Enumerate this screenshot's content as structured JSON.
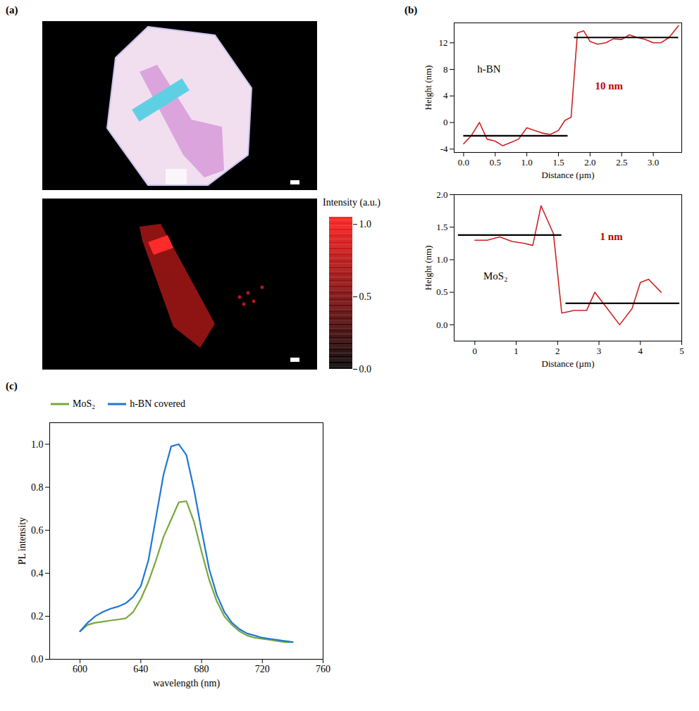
{
  "chart_data": [
    {
      "panel_label": "(a)",
      "type": "image",
      "colorbar_label": "Intensity (a.u.)",
      "colorbar_range": [
        0,
        1.05
      ],
      "colorbar_ticks": [
        {
          "value": 0,
          "label": "0.0"
        },
        {
          "value": 0.5,
          "label": "0.5"
        },
        {
          "value": 1,
          "label": "1.0"
        }
      ],
      "color": "#ff1a1a"
    },
    {
      "panel_label": "(b)",
      "type": "line",
      "x": [
        0,
        0.12,
        0.25,
        0.37,
        0.5,
        0.62,
        0.75,
        0.87,
        1.0,
        1.12,
        1.25,
        1.37,
        1.5,
        1.6,
        1.7,
        1.8,
        1.9,
        2.0,
        2.12,
        2.25,
        2.37,
        2.5,
        2.62,
        2.75,
        2.87,
        3.0,
        3.12,
        3.25,
        3.4
      ],
      "values": [
        -3.2,
        -2.0,
        0,
        -2.5,
        -2.8,
        -3.5,
        -3.0,
        -2.5,
        -0.8,
        -1.2,
        -1.6,
        -1.8,
        -1.2,
        0.3,
        0.8,
        13.5,
        13.8,
        12.2,
        11.8,
        12.0,
        12.6,
        12.5,
        13.2,
        12.8,
        12.5,
        12.0,
        12.0,
        12.8,
        14.6
      ],
      "color": "#cc2222",
      "xlabel": "Distance (µm)",
      "ylabel": "Height (nm)",
      "xlim": [
        -0.15,
        3.45
      ],
      "xticks": [
        {
          "value": 0,
          "label": "0.0"
        },
        {
          "value": 0.5,
          "label": "0.5"
        },
        {
          "value": 1,
          "label": "1.0"
        },
        {
          "value": 1.5,
          "label": "1.5"
        },
        {
          "value": 2,
          "label": "2.0"
        },
        {
          "value": 2.5,
          "label": "2.5"
        },
        {
          "value": 3,
          "label": "3.0"
        }
      ],
      "ylim": [
        -4.5,
        15
      ],
      "yticks": [
        -4,
        0,
        4,
        8,
        12
      ],
      "reference_lines": [
        {
          "y": -2,
          "x": [
            0,
            1.65
          ]
        },
        {
          "y": 12.8,
          "x": [
            1.75,
            3.4
          ]
        }
      ],
      "annotations": [
        {
          "text": "h-BN",
          "x": 0.4,
          "y": 8,
          "color": "#000000"
        },
        {
          "text": "10 nm",
          "x": 2.3,
          "y": 5.5,
          "color": "#c00000"
        }
      ]
    },
    {
      "type": "line",
      "x": [
        0,
        0.3,
        0.6,
        0.9,
        1.2,
        1.4,
        1.6,
        1.9,
        2.1,
        2.4,
        2.7,
        2.9,
        3.2,
        3.5,
        3.8,
        4.0,
        4.2,
        4.5
      ],
      "values": [
        1.3,
        1.3,
        1.35,
        1.28,
        1.25,
        1.22,
        1.83,
        1.4,
        0.18,
        0.22,
        0.22,
        0.5,
        0.25,
        0.0,
        0.25,
        0.65,
        0.7,
        0.5
      ],
      "color": "#cc2222",
      "xlabel": "Distance (µm)",
      "ylabel": "Height (nm)",
      "xlim": [
        -0.5,
        5
      ],
      "xticks": [
        0,
        1,
        2,
        3,
        4,
        5
      ],
      "ylim": [
        -0.25,
        2.0
      ],
      "yticks": [
        {
          "value": 0,
          "label": "0.0"
        },
        {
          "value": 0.5,
          "label": "0.5"
        },
        {
          "value": 1,
          "label": "1.0"
        },
        {
          "value": 1.5,
          "label": "1.5"
        },
        {
          "value": 2,
          "label": "2.0"
        }
      ],
      "reference_lines": [
        {
          "y": 1.38,
          "x": [
            -0.4,
            2.1
          ]
        },
        {
          "y": 0.33,
          "x": [
            2.2,
            4.95
          ]
        }
      ],
      "annotations": [
        {
          "text": "MoS₂",
          "x": 0.5,
          "y": 0.75,
          "color": "#000000"
        },
        {
          "text": "1 nm",
          "x": 3.3,
          "y": 1.35,
          "color": "#c00000"
        }
      ]
    },
    {
      "panel_label": "(c)",
      "type": "line",
      "x": [
        600,
        605,
        610,
        615,
        620,
        625,
        630,
        635,
        640,
        645,
        650,
        655,
        660,
        665,
        670,
        675,
        680,
        685,
        690,
        695,
        700,
        705,
        710,
        715,
        720,
        725,
        730,
        735,
        740
      ],
      "series": [
        {
          "name": "MoS₂",
          "color": "#78a83c",
          "values": [
            0.13,
            0.16,
            0.17,
            0.175,
            0.18,
            0.185,
            0.19,
            0.22,
            0.28,
            0.36,
            0.46,
            0.57,
            0.65,
            0.73,
            0.735,
            0.64,
            0.5,
            0.37,
            0.27,
            0.2,
            0.16,
            0.13,
            0.11,
            0.1,
            0.095,
            0.09,
            0.085,
            0.08,
            0.08
          ]
        },
        {
          "name": "h-BN covered",
          "color": "#1f77d4",
          "values": [
            0.13,
            0.17,
            0.2,
            0.22,
            0.235,
            0.245,
            0.26,
            0.29,
            0.34,
            0.46,
            0.66,
            0.86,
            0.99,
            1.0,
            0.95,
            0.79,
            0.6,
            0.42,
            0.3,
            0.22,
            0.17,
            0.14,
            0.12,
            0.11,
            0.1,
            0.095,
            0.09,
            0.085,
            0.08
          ]
        }
      ],
      "xlabel": "wavelength (nm)",
      "ylabel": "PL intensity",
      "xlim": [
        580,
        760
      ],
      "xticks": [
        600,
        640,
        680,
        720,
        760
      ],
      "ylim": [
        0,
        1.1
      ],
      "yticks": [
        {
          "value": 0,
          "label": "0.0"
        },
        {
          "value": 0.2,
          "label": "0.2"
        },
        {
          "value": 0.4,
          "label": "0.4"
        },
        {
          "value": 0.6,
          "label": "0.6"
        },
        {
          "value": 0.8,
          "label": "0.8"
        },
        {
          "value": 1,
          "label": "1.0"
        }
      ],
      "legend": "top"
    }
  ]
}
